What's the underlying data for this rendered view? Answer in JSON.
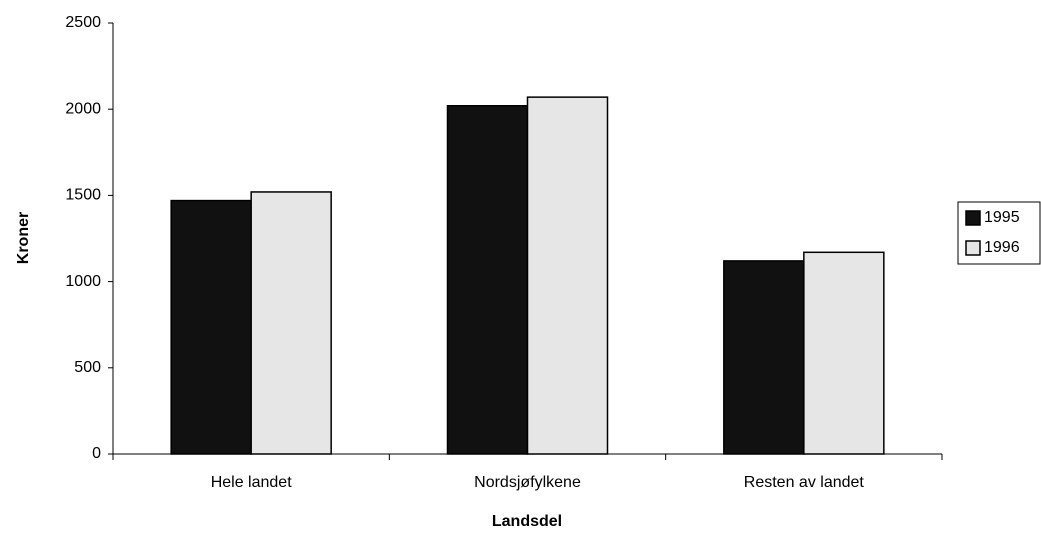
{
  "chart_data": {
    "type": "bar",
    "x_label": "Landsdel",
    "y_label": "Kroner",
    "categories": [
      "Hele landet",
      "Nordsjøfylkene",
      "Resten av landet"
    ],
    "series": [
      {
        "name": "1995",
        "color": "#111111",
        "values": [
          1470,
          2020,
          1120
        ]
      },
      {
        "name": "1996",
        "color": "#e6e6e6",
        "values": [
          1520,
          2070,
          1170
        ]
      }
    ],
    "ylim": [
      0,
      2500
    ],
    "yticks": [
      0,
      500,
      1000,
      1500,
      2000,
      2500
    ],
    "grid": false,
    "legend": "right"
  }
}
